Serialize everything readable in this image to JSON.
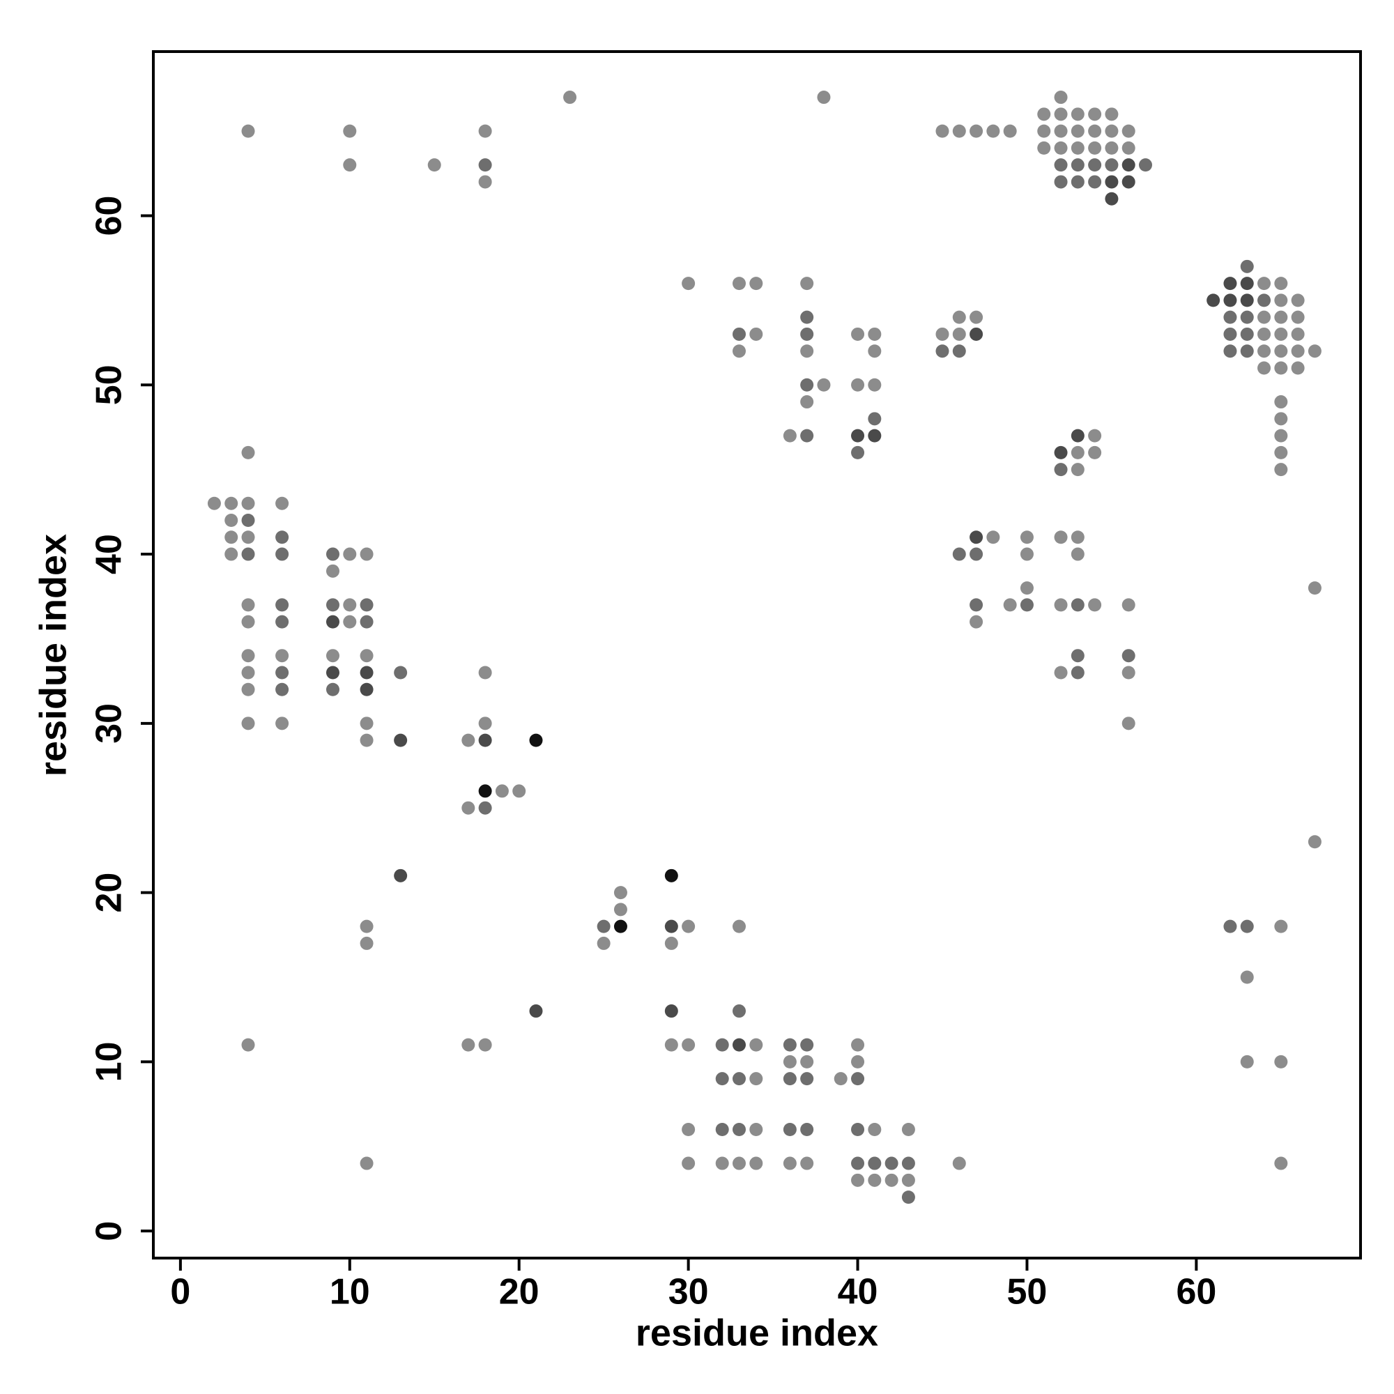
{
  "chart_data": {
    "type": "scatter",
    "xlabel": "residue index",
    "ylabel": "residue index",
    "xlim": [
      -1.6,
      69.7
    ],
    "ylim": [
      -1.6,
      69.7
    ],
    "xticks": [
      0,
      10,
      20,
      30,
      40,
      50,
      60
    ],
    "yticks": [
      0,
      10,
      20,
      30,
      40,
      50,
      60
    ],
    "x": [
      23,
      38,
      52,
      51,
      52,
      53,
      54,
      55,
      4,
      10,
      18,
      45,
      46,
      47,
      48,
      49,
      51,
      52,
      53,
      54,
      55,
      56,
      51,
      52,
      53,
      54,
      55,
      56,
      10,
      15,
      18,
      52,
      53,
      54,
      55,
      56,
      57,
      18,
      52,
      53,
      54,
      55,
      56,
      55,
      63,
      30,
      33,
      34,
      37,
      62,
      63,
      64,
      65,
      61,
      62,
      63,
      64,
      65,
      66,
      37,
      46,
      47,
      62,
      63,
      64,
      65,
      66,
      33,
      34,
      37,
      40,
      41,
      45,
      46,
      47,
      62,
      63,
      64,
      65,
      66,
      33,
      37,
      41,
      45,
      46,
      62,
      63,
      64,
      65,
      66,
      67,
      64,
      65,
      66,
      37,
      38,
      40,
      41,
      37,
      65,
      41,
      65,
      36,
      37,
      40,
      41,
      53,
      54,
      65,
      4,
      40,
      52,
      53,
      54,
      65,
      52,
      53,
      65,
      2,
      3,
      4,
      6,
      3,
      4,
      3,
      4,
      6,
      47,
      48,
      50,
      52,
      53,
      3,
      4,
      6,
      9,
      10,
      11,
      46,
      47,
      50,
      53,
      9,
      50,
      67,
      4,
      6,
      9,
      10,
      11,
      47,
      49,
      50,
      52,
      53,
      54,
      56,
      4,
      6,
      9,
      10,
      11,
      47,
      4,
      6,
      9,
      11,
      53,
      56,
      4,
      6,
      9,
      11,
      13,
      18,
      52,
      53,
      56,
      4,
      6,
      9,
      11,
      4,
      6,
      11,
      18,
      56,
      11,
      13,
      17,
      18,
      21,
      18,
      19,
      20,
      17,
      18,
      67,
      13,
      29,
      26,
      26,
      11,
      25,
      26,
      29,
      30,
      33,
      62,
      63,
      65,
      11,
      25,
      29,
      63,
      21,
      29,
      33,
      4,
      17,
      18,
      29,
      30,
      32,
      33,
      34,
      36,
      37,
      40,
      36,
      37,
      40,
      63,
      65,
      32,
      33,
      34,
      36,
      37,
      39,
      40,
      30,
      32,
      33,
      34,
      36,
      37,
      40,
      41,
      43,
      11,
      30,
      32,
      33,
      34,
      36,
      37,
      40,
      41,
      42,
      43,
      46,
      65,
      40,
      41,
      42,
      43,
      43
    ],
    "y": [
      67,
      67,
      67,
      66,
      66,
      66,
      66,
      66,
      65,
      65,
      65,
      65,
      65,
      65,
      65,
      65,
      65,
      65,
      65,
      65,
      65,
      65,
      64,
      64,
      64,
      64,
      64,
      64,
      63,
      63,
      63,
      63,
      63,
      63,
      63,
      63,
      63,
      62,
      62,
      62,
      62,
      62,
      62,
      61,
      57,
      56,
      56,
      56,
      56,
      56,
      56,
      56,
      56,
      55,
      55,
      55,
      55,
      55,
      55,
      54,
      54,
      54,
      54,
      54,
      54,
      54,
      54,
      53,
      53,
      53,
      53,
      53,
      53,
      53,
      53,
      53,
      53,
      53,
      53,
      53,
      52,
      52,
      52,
      52,
      52,
      52,
      52,
      52,
      52,
      52,
      52,
      51,
      51,
      51,
      50,
      50,
      50,
      50,
      49,
      49,
      48,
      48,
      47,
      47,
      47,
      47,
      47,
      47,
      47,
      46,
      46,
      46,
      46,
      46,
      46,
      45,
      45,
      45,
      43,
      43,
      43,
      43,
      42,
      42,
      41,
      41,
      41,
      41,
      41,
      41,
      41,
      41,
      40,
      40,
      40,
      40,
      40,
      40,
      40,
      40,
      40,
      40,
      39,
      38,
      38,
      37,
      37,
      37,
      37,
      37,
      37,
      37,
      37,
      37,
      37,
      37,
      37,
      36,
      36,
      36,
      36,
      36,
      36,
      34,
      34,
      34,
      34,
      34,
      34,
      33,
      33,
      33,
      33,
      33,
      33,
      33,
      33,
      33,
      32,
      32,
      32,
      32,
      30,
      30,
      30,
      30,
      30,
      29,
      29,
      29,
      29,
      29,
      26,
      26,
      26,
      25,
      25,
      23,
      21,
      21,
      20,
      19,
      18,
      18,
      18,
      18,
      18,
      18,
      18,
      18,
      18,
      17,
      17,
      17,
      15,
      13,
      13,
      13,
      11,
      11,
      11,
      11,
      11,
      11,
      11,
      11,
      11,
      11,
      11,
      10,
      10,
      10,
      10,
      10,
      9,
      9,
      9,
      9,
      9,
      9,
      9,
      6,
      6,
      6,
      6,
      6,
      6,
      6,
      6,
      6,
      4,
      4,
      4,
      4,
      4,
      4,
      4,
      4,
      4,
      4,
      4,
      4,
      4,
      3,
      3,
      3,
      3,
      2
    ],
    "colors": [
      "#8c8c8c",
      "#8c8c8c",
      "#8c8c8c",
      "#8c8c8c",
      "#8c8c8c",
      "#8c8c8c",
      "#8c8c8c",
      "#8c8c8c",
      "#8c8c8c",
      "#8c8c8c",
      "#8c8c8c",
      "#8c8c8c",
      "#8c8c8c",
      "#8c8c8c",
      "#8c8c8c",
      "#8c8c8c",
      "#8c8c8c",
      "#8c8c8c",
      "#8c8c8c",
      "#8c8c8c",
      "#8c8c8c",
      "#8c8c8c",
      "#8c8c8c",
      "#8c8c8c",
      "#8c8c8c",
      "#8c8c8c",
      "#8c8c8c",
      "#8c8c8c",
      "#8c8c8c",
      "#8c8c8c",
      "#6e6e6e",
      "#6e6e6e",
      "#6e6e6e",
      "#6e6e6e",
      "#6e6e6e",
      "#4a4a4a",
      "#6e6e6e",
      "#8c8c8c",
      "#6e6e6e",
      "#6e6e6e",
      "#6e6e6e",
      "#4a4a4a",
      "#4a4a4a",
      "#4a4a4a",
      "#6e6e6e",
      "#8c8c8c",
      "#8c8c8c",
      "#8c8c8c",
      "#8c8c8c",
      "#4a4a4a",
      "#4a4a4a",
      "#8c8c8c",
      "#8c8c8c",
      "#4a4a4a",
      "#4a4a4a",
      "#4a4a4a",
      "#6e6e6e",
      "#8c8c8c",
      "#8c8c8c",
      "#6e6e6e",
      "#8c8c8c",
      "#8c8c8c",
      "#6e6e6e",
      "#6e6e6e",
      "#8c8c8c",
      "#8c8c8c",
      "#8c8c8c",
      "#6e6e6e",
      "#8c8c8c",
      "#6e6e6e",
      "#8c8c8c",
      "#8c8c8c",
      "#8c8c8c",
      "#8c8c8c",
      "#4a4a4a",
      "#6e6e6e",
      "#6e6e6e",
      "#8c8c8c",
      "#8c8c8c",
      "#8c8c8c",
      "#8c8c8c",
      "#8c8c8c",
      "#8c8c8c",
      "#6e6e6e",
      "#6e6e6e",
      "#6e6e6e",
      "#6e6e6e",
      "#8c8c8c",
      "#8c8c8c",
      "#8c8c8c",
      "#8c8c8c",
      "#8c8c8c",
      "#8c8c8c",
      "#8c8c8c",
      "#6e6e6e",
      "#8c8c8c",
      "#8c8c8c",
      "#8c8c8c",
      "#8c8c8c",
      "#8c8c8c",
      "#6e6e6e",
      "#8c8c8c",
      "#8c8c8c",
      "#6e6e6e",
      "#4a4a4a",
      "#4a4a4a",
      "#4a4a4a",
      "#8c8c8c",
      "#8c8c8c",
      "#8c8c8c",
      "#6e6e6e",
      "#4a4a4a",
      "#8c8c8c",
      "#8c8c8c",
      "#8c8c8c",
      "#6e6e6e",
      "#8c8c8c",
      "#8c8c8c",
      "#8c8c8c",
      "#8c8c8c",
      "#8c8c8c",
      "#8c8c8c",
      "#8c8c8c",
      "#6e6e6e",
      "#8c8c8c",
      "#8c8c8c",
      "#6e6e6e",
      "#4a4a4a",
      "#8c8c8c",
      "#8c8c8c",
      "#8c8c8c",
      "#8c8c8c",
      "#8c8c8c",
      "#6e6e6e",
      "#6e6e6e",
      "#6e6e6e",
      "#8c8c8c",
      "#8c8c8c",
      "#6e6e6e",
      "#6e6e6e",
      "#8c8c8c",
      "#8c8c8c",
      "#8c8c8c",
      "#8c8c8c",
      "#8c8c8c",
      "#8c8c8c",
      "#6e6e6e",
      "#6e6e6e",
      "#8c8c8c",
      "#6e6e6e",
      "#6e6e6e",
      "#8c8c8c",
      "#6e6e6e",
      "#8c8c8c",
      "#6e6e6e",
      "#8c8c8c",
      "#8c8c8c",
      "#8c8c8c",
      "#6e6e6e",
      "#4a4a4a",
      "#8c8c8c",
      "#6e6e6e",
      "#8c8c8c",
      "#8c8c8c",
      "#8c8c8c",
      "#8c8c8c",
      "#8c8c8c",
      "#6e6e6e",
      "#6e6e6e",
      "#8c8c8c",
      "#6e6e6e",
      "#4a4a4a",
      "#4a4a4a",
      "#6e6e6e",
      "#8c8c8c",
      "#8c8c8c",
      "#6e6e6e",
      "#8c8c8c",
      "#8c8c8c",
      "#6e6e6e",
      "#6e6e6e",
      "#4a4a4a",
      "#8c8c8c",
      "#8c8c8c",
      "#8c8c8c",
      "#8c8c8c",
      "#8c8c8c",
      "#8c8c8c",
      "#4a4a4a",
      "#8c8c8c",
      "#4a4a4a",
      "#111111",
      "#111111",
      "#8c8c8c",
      "#8c8c8c",
      "#8c8c8c",
      "#6e6e6e",
      "#8c8c8c",
      "#4a4a4a",
      "#111111",
      "#8c8c8c",
      "#8c8c8c",
      "#8c8c8c",
      "#6e6e6e",
      "#111111",
      "#4a4a4a",
      "#8c8c8c",
      "#8c8c8c",
      "#6e6e6e",
      "#6e6e6e",
      "#8c8c8c",
      "#8c8c8c",
      "#8c8c8c",
      "#8c8c8c",
      "#8c8c8c",
      "#4a4a4a",
      "#4a4a4a",
      "#6e6e6e",
      "#8c8c8c",
      "#8c8c8c",
      "#8c8c8c",
      "#8c8c8c",
      "#8c8c8c",
      "#6e6e6e",
      "#4a4a4a",
      "#8c8c8c",
      "#6e6e6e",
      "#6e6e6e",
      "#8c8c8c",
      "#8c8c8c",
      "#8c8c8c",
      "#8c8c8c",
      "#8c8c8c",
      "#8c8c8c",
      "#6e6e6e",
      "#6e6e6e",
      "#8c8c8c",
      "#6e6e6e",
      "#6e6e6e",
      "#8c8c8c",
      "#6e6e6e",
      "#8c8c8c",
      "#6e6e6e",
      "#6e6e6e",
      "#8c8c8c",
      "#6e6e6e",
      "#6e6e6e",
      "#6e6e6e",
      "#8c8c8c",
      "#8c8c8c",
      "#8c8c8c",
      "#8c8c8c",
      "#8c8c8c",
      "#8c8c8c",
      "#8c8c8c",
      "#8c8c8c",
      "#8c8c8c",
      "#6e6e6e",
      "#6e6e6e",
      "#6e6e6e",
      "#6e6e6e",
      "#8c8c8c",
      "#8c8c8c",
      "#8c8c8c",
      "#8c8c8c",
      "#8c8c8c",
      "#8c8c8c",
      "#6e6e6e"
    ]
  }
}
